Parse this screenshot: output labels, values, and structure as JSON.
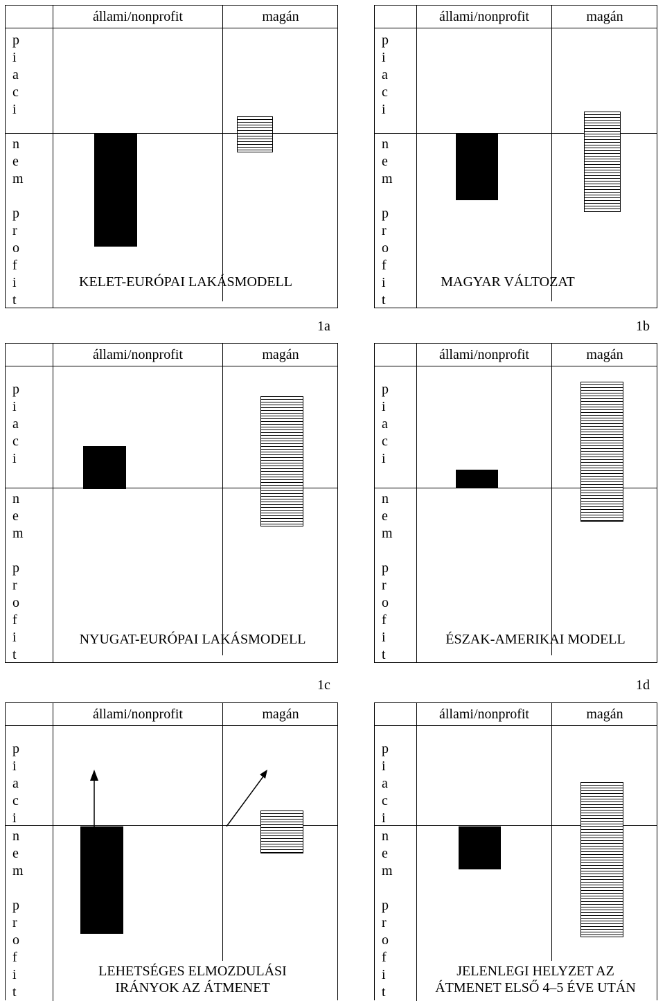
{
  "header": {
    "state_label": "állami/nonprofit",
    "private_label": "magán"
  },
  "row_labels": {
    "market": [
      "p",
      "i",
      "a",
      "c",
      "i"
    ],
    "nonmarket": [
      "n",
      "e",
      "m",
      "",
      "p",
      "r",
      "o",
      "f",
      "i",
      "t"
    ]
  },
  "panels": [
    {
      "id": "1a",
      "caption": "KELET-EURÓPAI LAKÁSMODELL"
    },
    {
      "id": "1b",
      "caption": "MAGYAR VÁLTOZAT"
    },
    {
      "id": "1c",
      "caption": "NYUGAT-EURÓPAI LAKÁSMODELL"
    },
    {
      "id": "1d",
      "caption": "ÉSZAK-AMERIKAI MODELL"
    },
    {
      "id": "",
      "caption_lines": [
        "LEHETSÉGES ELMOZDULÁSI",
        "IRÁNYOK AZ ÁTMENET"
      ]
    },
    {
      "id": "",
      "caption_lines": [
        "JELENLEGI HELYZET  AZ",
        "ÁTMENET ELSŐ 4–5 ÉVE UTÁN"
      ]
    }
  ]
}
